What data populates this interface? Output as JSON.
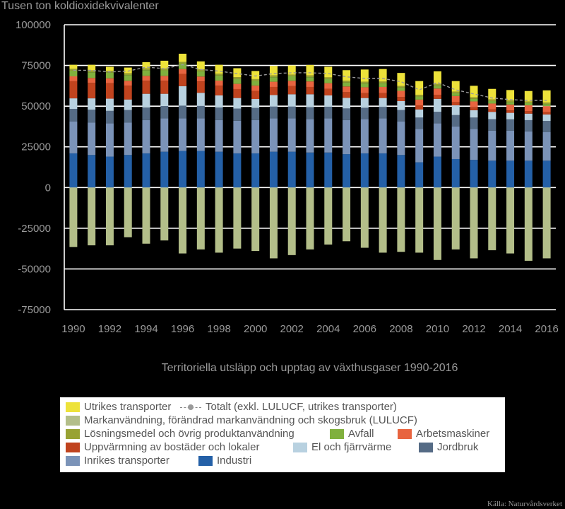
{
  "chart_data": {
    "type": "bar",
    "stacked": true,
    "unit_label": "Tusen ton koldioxidekvivalenter",
    "caption": "Territoriella utsläpp och upptag av växthusgaser 1990-2016",
    "source": "Källa: Naturvårdsverket",
    "ylim": [
      -75000,
      100000
    ],
    "yticks": [
      "100000",
      "75000",
      "50000",
      "25000",
      "0",
      "-25000",
      "-50000",
      "-75000"
    ],
    "ytick_values": [
      100000,
      75000,
      50000,
      25000,
      0,
      -25000,
      -50000,
      -75000
    ],
    "years": [
      1990,
      1991,
      1992,
      1993,
      1994,
      1995,
      1996,
      1997,
      1998,
      1999,
      2000,
      2001,
      2002,
      2003,
      2004,
      2005,
      2006,
      2007,
      2008,
      2009,
      2010,
      2011,
      2012,
      2013,
      2014,
      2015,
      2016
    ],
    "xtick_labels": [
      "1990",
      "1992",
      "1994",
      "1996",
      "1998",
      "2000",
      "2002",
      "2004",
      "2006",
      "2008",
      "2010",
      "2012",
      "2014",
      "2016"
    ],
    "series": [
      {
        "name": "Industri",
        "color": "#2460a7",
        "values": [
          21000,
          20000,
          19000,
          20000,
          21000,
          22000,
          22500,
          22500,
          22000,
          21000,
          21000,
          22000,
          22000,
          21500,
          21500,
          20500,
          21000,
          21000,
          20000,
          15500,
          19000,
          17500,
          17000,
          16500,
          16500,
          16500,
          16500
        ]
      },
      {
        "name": "Inrikes transporter",
        "color": "#7b93b8",
        "values": [
          19500,
          20000,
          20500,
          20000,
          20500,
          20500,
          20000,
          20000,
          19500,
          20000,
          20500,
          20500,
          20500,
          20500,
          21000,
          21000,
          21000,
          21500,
          20500,
          20500,
          20500,
          20000,
          19000,
          18500,
          18500,
          18000,
          17500
        ]
      },
      {
        "name": "Jordbruk",
        "color": "#556b85",
        "values": [
          7800,
          7800,
          7600,
          7600,
          7600,
          7600,
          7800,
          7700,
          7600,
          7500,
          7400,
          7300,
          7300,
          7300,
          7100,
          7100,
          7000,
          7000,
          7100,
          7000,
          7000,
          7000,
          7000,
          7000,
          6900,
          6900,
          6900
        ]
      },
      {
        "name": "El och fjärrvärme",
        "color": "#b8d1e0",
        "values": [
          6500,
          7000,
          7500,
          6500,
          8500,
          7500,
          12000,
          8000,
          7500,
          6500,
          5500,
          7000,
          7500,
          8000,
          7000,
          6500,
          6000,
          5500,
          5500,
          5000,
          8000,
          6000,
          4500,
          4500,
          4000,
          4000,
          4000
        ]
      },
      {
        "name": "Uppvärmning av bostäder och lokaler",
        "color": "#c0431e",
        "values": [
          10500,
          9500,
          9500,
          8500,
          8000,
          8000,
          7500,
          7000,
          6000,
          5500,
          5000,
          5000,
          5000,
          4500,
          4000,
          3500,
          3000,
          3000,
          2500,
          2500,
          2500,
          2000,
          1800,
          1500,
          1500,
          1500,
          1500
        ]
      },
      {
        "name": "Arbetsmaskiner",
        "color": "#e8643f",
        "values": [
          3000,
          3000,
          3000,
          3000,
          3000,
          3000,
          3000,
          3000,
          3100,
          3200,
          3200,
          3200,
          3300,
          3400,
          3500,
          3500,
          3600,
          3800,
          3800,
          3500,
          3800,
          3700,
          3600,
          3600,
          3600,
          3600,
          3600
        ]
      },
      {
        "name": "Avfall",
        "color": "#80b03d",
        "values": [
          3500,
          3500,
          3500,
          3500,
          3500,
          3400,
          3300,
          3200,
          3100,
          3000,
          2900,
          2800,
          2700,
          2600,
          2500,
          2400,
          2300,
          2200,
          2000,
          1900,
          1800,
          1700,
          1600,
          1500,
          1400,
          1300,
          1200
        ]
      },
      {
        "name": "Lösningsmedel och övrig produktanvändning",
        "color": "#98a233",
        "values": [
          1100,
          1100,
          1100,
          1100,
          1100,
          1100,
          1100,
          1100,
          1100,
          1100,
          1100,
          1100,
          1100,
          1100,
          1100,
          1100,
          1100,
          1100,
          1000,
          1000,
          1000,
          1000,
          1000,
          1000,
          1000,
          1000,
          1000
        ]
      },
      {
        "name": "Utrikes transporter",
        "color": "#ede23a",
        "values": [
          2500,
          3500,
          2500,
          3500,
          3800,
          4800,
          5000,
          5000,
          5500,
          5500,
          5000,
          5800,
          5600,
          6400,
          6500,
          6500,
          7500,
          7700,
          8000,
          8500,
          7800,
          6500,
          7000,
          6500,
          6500,
          6500,
          7500
        ]
      },
      {
        "name": "Markanvändning, förändrad markanvändning och skogsbruk (LULUCF)",
        "color": "#b3be89",
        "values": [
          -36500,
          -35500,
          -35500,
          -30500,
          -34500,
          -32500,
          -40500,
          -38000,
          -40000,
          -37500,
          -39000,
          -43500,
          -41500,
          -38000,
          -35000,
          -33000,
          -37000,
          -40000,
          -39500,
          -40000,
          -44500,
          -38000,
          -43500,
          -38500,
          -40500,
          -45000,
          -43500
        ]
      }
    ],
    "total_line": {
      "name": "Totalt (exkl. LULUCF, utrikes transporter)",
      "color": "#9a9a9a",
      "values": [
        72000,
        72000,
        71000,
        71500,
        74000,
        73000,
        75500,
        72500,
        71500,
        70000,
        68500,
        70000,
        70500,
        70500,
        70000,
        68000,
        67000,
        67000,
        65000,
        60000,
        64500,
        60000,
        57500,
        55000,
        54000,
        53500,
        53500
      ]
    }
  },
  "legend": {
    "utrikes": "Utrikes transporter",
    "totalt": "Totalt (exkl. LULUCF, utrikes transporter)",
    "lulucf": "Markanvändning, förändrad markanvändning och skogsbruk (LULUCF)",
    "losning": "Lösningsmedel och övrig produktanvändning",
    "avfall": "Avfall",
    "arbets": "Arbetsmaskiner",
    "uppv": "Uppvärmning av bostäder och lokaler",
    "el": "El och fjärrvärme",
    "jordbruk": "Jordbruk",
    "inrikes": "Inrikes transporter",
    "industri": "Industri"
  },
  "colors": {
    "utrikes": "#ede23a",
    "lulucf": "#b3be89",
    "losning": "#98a233",
    "avfall": "#80b03d",
    "arbets": "#e8643f",
    "uppv": "#c0431e",
    "el": "#b8d1e0",
    "jordbruk": "#556b85",
    "inrikes": "#7b93b8",
    "industri": "#2460a7"
  }
}
